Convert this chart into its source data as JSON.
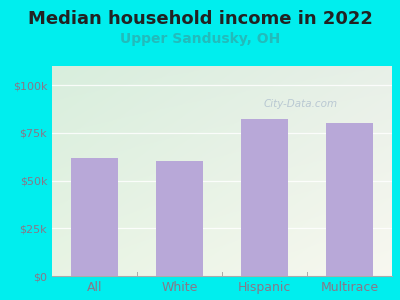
{
  "title": "Median household income in 2022",
  "subtitle": "Upper Sandusky, OH",
  "categories": [
    "All",
    "White",
    "Hispanic",
    "Multirace"
  ],
  "values": [
    62000,
    60000,
    82000,
    80000
  ],
  "bar_color": "#b8a8d8",
  "title_fontsize": 13,
  "subtitle_fontsize": 10,
  "subtitle_color": "#22bbbb",
  "title_color": "#222222",
  "background_color": "#00eeee",
  "plot_bg_color_topleft": "#d8eedd",
  "plot_bg_color_bottomright": "#f8f8f0",
  "tick_color": "#887788",
  "yticks": [
    0,
    25000,
    50000,
    75000,
    100000
  ],
  "ytick_labels": [
    "$0",
    "$25k",
    "$50k",
    "$75k",
    "$100k"
  ],
  "ylim": [
    0,
    110000
  ],
  "watermark": "City-Data.com",
  "watermark_color": "#aabbcc"
}
